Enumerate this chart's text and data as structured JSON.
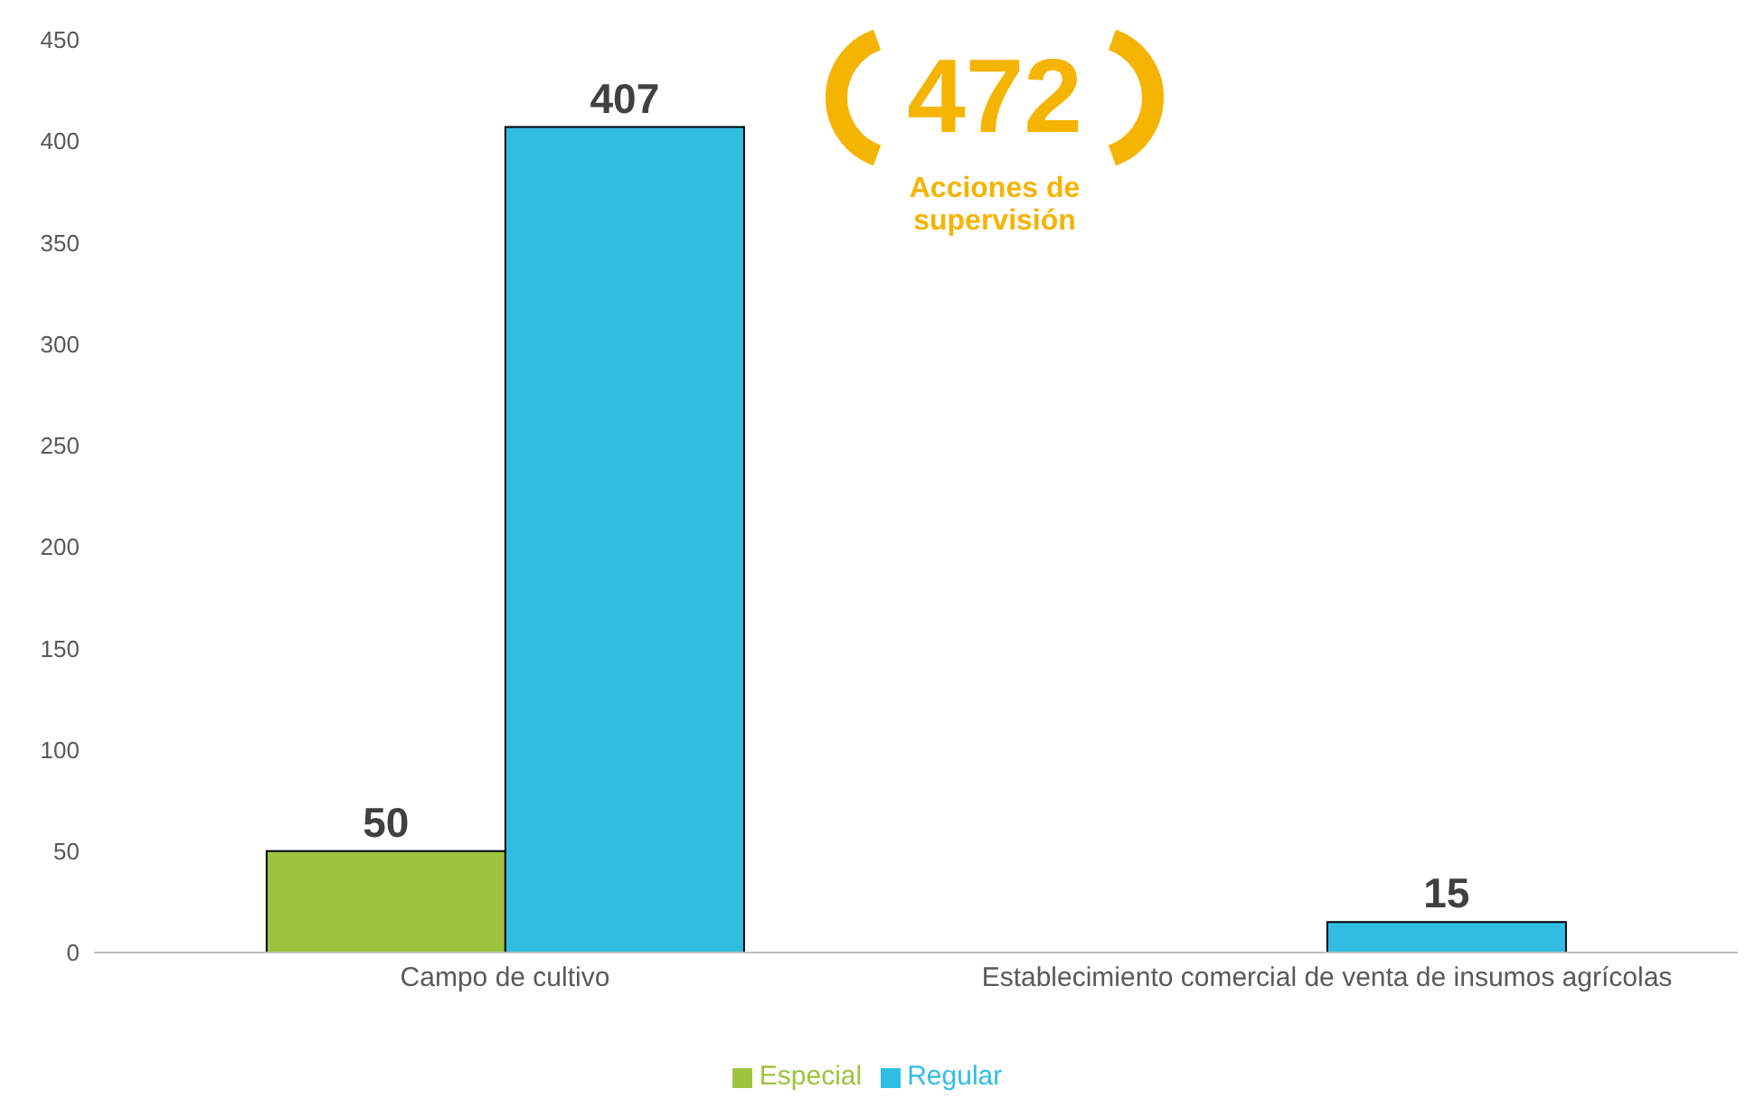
{
  "chart_data": {
    "type": "bar",
    "categories": [
      "Campo de cultivo",
      "Establecimiento comercial de venta de insumos agrícolas"
    ],
    "series": [
      {
        "name": "Especial",
        "color": "#9dc33f",
        "values": [
          50,
          null
        ]
      },
      {
        "name": "Regular",
        "color": "#31bde2",
        "values": [
          407,
          15
        ]
      }
    ],
    "ylim": [
      0,
      450
    ],
    "yticks": [
      0,
      50,
      100,
      150,
      200,
      250,
      300,
      350,
      400,
      450
    ],
    "grid": false,
    "legend": "bottom",
    "data_labels": true,
    "annotations": [
      "472",
      "Acciones de supervisión"
    ]
  }
}
